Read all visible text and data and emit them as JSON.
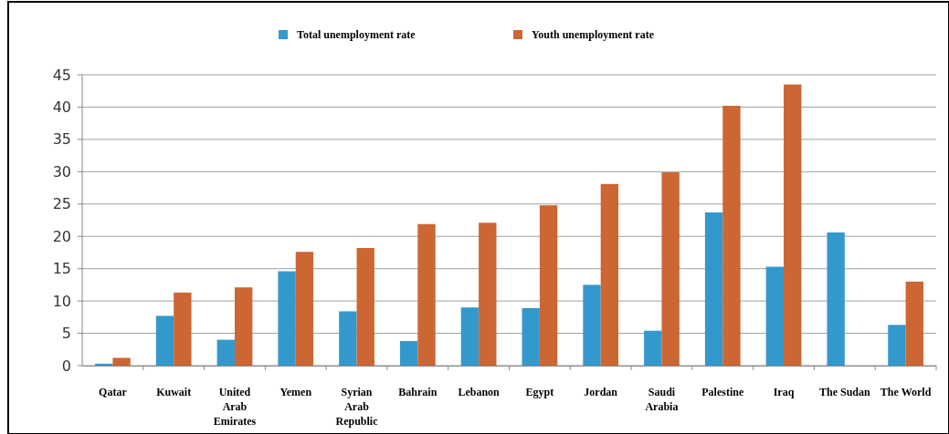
{
  "chart_data": {
    "type": "bar",
    "categories": [
      "Qatar",
      "Kuwait",
      "United Arab Emirates",
      "Yemen",
      "Syrian Arab Republic",
      "Bahrain",
      "Lebanon",
      "Egypt",
      "Jordan",
      "Saudi Arabia",
      "Palestine",
      "Iraq",
      "The Sudan",
      "The World"
    ],
    "series": [
      {
        "name": "Total unemployment rate",
        "color": "#3399cc",
        "values": [
          0.3,
          7.7,
          4.0,
          14.6,
          8.4,
          3.8,
          9.0,
          8.9,
          12.5,
          5.4,
          23.7,
          15.3,
          20.6,
          6.3
        ]
      },
      {
        "name": "Youth unemployment rate",
        "color": "#cc6633",
        "values": [
          1.2,
          11.3,
          12.1,
          17.6,
          18.2,
          21.9,
          22.1,
          24.8,
          28.1,
          29.9,
          40.2,
          43.5,
          null,
          13.0
        ]
      }
    ],
    "ylim": [
      0,
      45
    ],
    "yticks": [
      0,
      5,
      10,
      15,
      20,
      25,
      30,
      35,
      40,
      45
    ],
    "grid": "y",
    "legend": "top"
  }
}
